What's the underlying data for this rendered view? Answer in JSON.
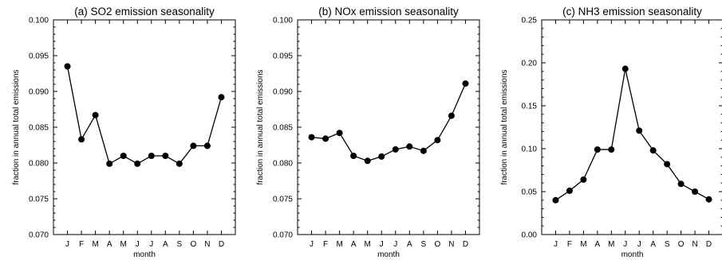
{
  "chart_data": [
    {
      "type": "line",
      "title": "(a) SO2 emission seasonality",
      "xlabel": "month",
      "ylabel": "fraction in annual total emissions",
      "categories": [
        "J",
        "F",
        "M",
        "A",
        "M",
        "J",
        "J",
        "A",
        "S",
        "O",
        "N",
        "D"
      ],
      "values": [
        0.0935,
        0.0833,
        0.0867,
        0.0799,
        0.081,
        0.0799,
        0.081,
        0.081,
        0.0799,
        0.0824,
        0.0824,
        0.0892
      ],
      "ylim": [
        0.07,
        0.1
      ],
      "yticks": [
        "0.070",
        "0.075",
        "0.080",
        "0.085",
        "0.090",
        "0.095",
        "0.100"
      ]
    },
    {
      "type": "line",
      "title": "(b) NOx emission seasonality",
      "xlabel": "month",
      "ylabel": "fraction in annual total emissions",
      "categories": [
        "J",
        "F",
        "M",
        "A",
        "M",
        "J",
        "J",
        "A",
        "S",
        "O",
        "N",
        "D"
      ],
      "values": [
        0.0836,
        0.0834,
        0.0842,
        0.081,
        0.0803,
        0.0809,
        0.0819,
        0.0823,
        0.0817,
        0.0832,
        0.0866,
        0.0911
      ],
      "ylim": [
        0.07,
        0.1
      ],
      "yticks": [
        "0.070",
        "0.075",
        "0.080",
        "0.085",
        "0.090",
        "0.095",
        "0.100"
      ]
    },
    {
      "type": "line",
      "title": "(c) NH3 emission seasonality",
      "xlabel": "month",
      "ylabel": "fraction in annual total emissions",
      "categories": [
        "J",
        "F",
        "M",
        "A",
        "M",
        "J",
        "J",
        "A",
        "S",
        "O",
        "N",
        "D"
      ],
      "values": [
        0.04,
        0.051,
        0.064,
        0.099,
        0.099,
        0.193,
        0.121,
        0.098,
        0.082,
        0.059,
        0.05,
        0.041
      ],
      "ylim": [
        0.0,
        0.25
      ],
      "yticks": [
        "0.00",
        "0.05",
        "0.10",
        "0.15",
        "0.20",
        "0.25"
      ]
    }
  ]
}
